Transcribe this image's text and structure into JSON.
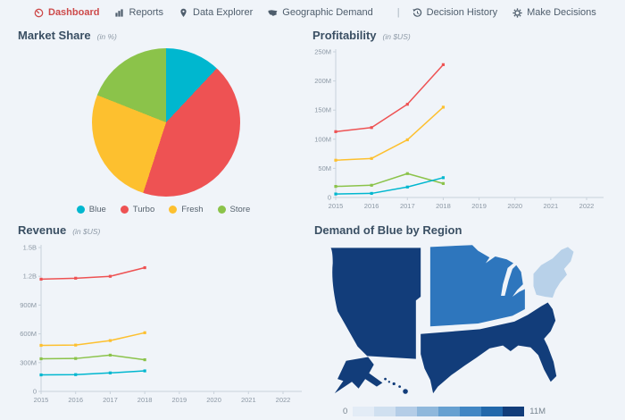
{
  "theme": {
    "background": "#f0f4f9",
    "title_color": "#3a4f63",
    "nav_text_color": "#4e5d6c",
    "nav_active_color": "#cd4a4a",
    "axis_color": "#c9d2dc",
    "tick_text_color": "#8b97a4",
    "legend_text_color": "#57636f"
  },
  "nav": {
    "separator": "|",
    "items": [
      {
        "label": "Dashboard",
        "icon": "gauge-icon",
        "active": true
      },
      {
        "label": "Reports",
        "icon": "bar-chart-icon",
        "active": false
      },
      {
        "label": "Data Explorer",
        "icon": "map-pin-icon",
        "active": false
      },
      {
        "label": "Geographic Demand",
        "icon": "us-map-icon",
        "active": false
      },
      {
        "label": "Decision History",
        "icon": "history-icon",
        "active": false
      },
      {
        "label": "Make Decisions",
        "icon": "gear-icon",
        "active": false
      }
    ]
  },
  "panels": {
    "market_share": {
      "title": "Market Share",
      "subtitle": "(in %)"
    },
    "profitability": {
      "title": "Profitability",
      "subtitle": "(in $US)"
    },
    "revenue": {
      "title": "Revenue",
      "subtitle": "(in $US)"
    },
    "demand": {
      "title": "Demand of Blue by Region",
      "legend_min": "0",
      "legend_max": "11M"
    }
  },
  "chart_data": [
    {
      "id": "market_share",
      "type": "pie",
      "title": "Market Share (in %)",
      "categories": [
        "Blue",
        "Turbo",
        "Fresh",
        "Store"
      ],
      "values": [
        12,
        43,
        26,
        19
      ],
      "colors": [
        "#00b7cf",
        "#ee5253",
        "#fdc02f",
        "#8bc34a"
      ],
      "legend_position": "bottom",
      "start_angle_deg": 0
    },
    {
      "id": "profitability",
      "type": "line",
      "title": "Profitability (in $US)",
      "x": [
        2015,
        2016,
        2017,
        2018
      ],
      "xticks": [
        2015,
        2016,
        2017,
        2018,
        2019,
        2020,
        2021,
        2022
      ],
      "xlim": [
        2015,
        2022
      ],
      "unit": "$M",
      "ylim": [
        0,
        250
      ],
      "yticks": [
        {
          "v": 0,
          "label": "0"
        },
        {
          "v": 50,
          "label": "50M"
        },
        {
          "v": 100,
          "label": "100M"
        },
        {
          "v": 150,
          "label": "150M"
        },
        {
          "v": 200,
          "label": "200M"
        },
        {
          "v": 250,
          "label": "250M"
        }
      ],
      "grid": false,
      "series": [
        {
          "name": "Turbo",
          "color": "#ee5253",
          "values": [
            113,
            120,
            160,
            228
          ]
        },
        {
          "name": "Fresh",
          "color": "#fdc02f",
          "values": [
            64,
            67,
            99,
            155
          ]
        },
        {
          "name": "Store",
          "color": "#8bc34a",
          "values": [
            19,
            21,
            41,
            24
          ]
        },
        {
          "name": "Blue",
          "color": "#00b7cf",
          "values": [
            6,
            7,
            18,
            34
          ]
        }
      ]
    },
    {
      "id": "revenue",
      "type": "line",
      "title": "Revenue (in $US)",
      "x": [
        2015,
        2016,
        2017,
        2018
      ],
      "xticks": [
        2015,
        2016,
        2017,
        2018,
        2019,
        2020,
        2021,
        2022
      ],
      "xlim": [
        2015,
        2022
      ],
      "unit": "$M",
      "ylim": [
        0,
        1500
      ],
      "yticks": [
        {
          "v": 0,
          "label": "0"
        },
        {
          "v": 300,
          "label": "300M"
        },
        {
          "v": 600,
          "label": "600M"
        },
        {
          "v": 900,
          "label": "900M"
        },
        {
          "v": 1200,
          "label": "1.2B"
        },
        {
          "v": 1500,
          "label": "1.5B"
        }
      ],
      "grid": false,
      "series": [
        {
          "name": "Turbo",
          "color": "#ee5253",
          "values": [
            1170,
            1180,
            1200,
            1290
          ]
        },
        {
          "name": "Fresh",
          "color": "#fdc02f",
          "values": [
            480,
            483,
            530,
            612
          ]
        },
        {
          "name": "Store",
          "color": "#8bc34a",
          "values": [
            340,
            343,
            378,
            330
          ]
        },
        {
          "name": "Blue",
          "color": "#00b7cf",
          "values": [
            172,
            175,
            193,
            214
          ]
        }
      ]
    },
    {
      "id": "demand_by_region",
      "type": "choropleth",
      "title": "Demand of Blue by Region",
      "scale": {
        "min_label": "0",
        "max_label": "11M",
        "colors": [
          "#e3ecf6",
          "#d0e0f0",
          "#b4cde7",
          "#8fb8dc",
          "#66a0d1",
          "#4186c4",
          "#2268ab",
          "#123d7a"
        ]
      },
      "regions": [
        {
          "name": "West",
          "fill": "#123d7a"
        },
        {
          "name": "Midwest",
          "fill": "#2e76bd"
        },
        {
          "name": "Northeast",
          "fill": "#b8d1e9"
        },
        {
          "name": "South",
          "fill": "#123d7a"
        },
        {
          "name": "Alaska",
          "fill": "#123d7a"
        },
        {
          "name": "Hawaii",
          "fill": "#123d7a"
        }
      ]
    }
  ]
}
